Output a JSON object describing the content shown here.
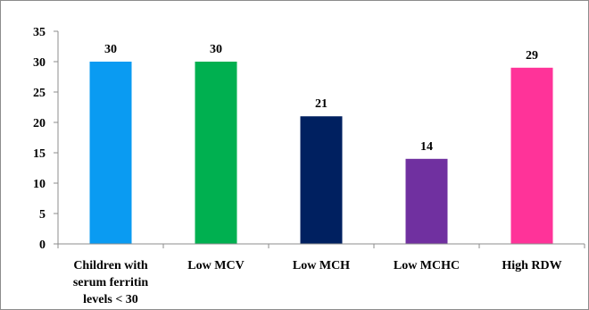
{
  "chart_data": {
    "type": "bar",
    "categories": [
      [
        "Children with",
        "serum ferritin",
        "levels < 30"
      ],
      [
        "Low MCV"
      ],
      [
        "Low MCH"
      ],
      [
        "Low MCHC"
      ],
      [
        "High RDW"
      ]
    ],
    "values": [
      30,
      30,
      21,
      14,
      29
    ],
    "colors": [
      "#0a9bf2",
      "#00b050",
      "#002060",
      "#7030a0",
      "#ff3399"
    ],
    "data_labels": [
      "30",
      "30",
      "21",
      "14",
      "29"
    ],
    "y_ticks": [
      "0",
      "5",
      "10",
      "15",
      "20",
      "25",
      "30",
      "35"
    ],
    "ylim": [
      0,
      35
    ],
    "title": "",
    "xlabel": "",
    "ylabel": "",
    "grid": false,
    "legend": "none"
  }
}
